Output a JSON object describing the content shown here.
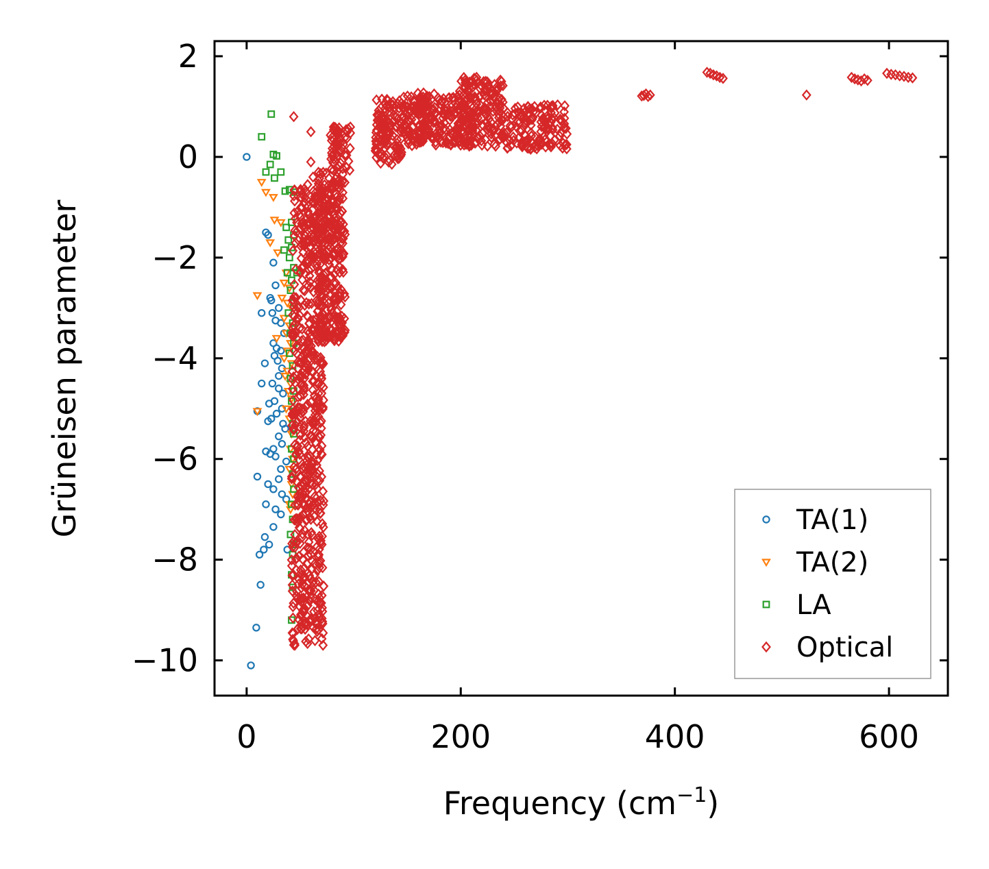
{
  "chart_data": {
    "type": "scatter",
    "title": "",
    "xlabel": "Frequency (cm",
    "xlabel_sup": "−1",
    "xlabel_close": ")",
    "ylabel": "Grüneisen parameter",
    "xlim": [
      -30,
      655
    ],
    "ylim": [
      -10.7,
      2.3
    ],
    "x_ticks": [
      0,
      200,
      400,
      600
    ],
    "x_tick_labels": [
      "0",
      "200",
      "400",
      "600"
    ],
    "y_ticks": [
      2,
      0,
      -2,
      -4,
      -6,
      -8,
      -10
    ],
    "y_tick_labels": [
      "2",
      "0",
      "−2",
      "−4",
      "−6",
      "−8",
      "−10"
    ],
    "legend_position": "lower-right",
    "series": [
      {
        "name": "TA(1)",
        "marker": "circle",
        "color": "#1f77b4",
        "points": [
          [
            0,
            0
          ],
          [
            18,
            -1.5
          ],
          [
            20,
            -1.55
          ],
          [
            25,
            -2.1
          ],
          [
            27,
            -2.55
          ],
          [
            22,
            -2.8
          ],
          [
            23,
            -2.85
          ],
          [
            30,
            -3.0
          ],
          [
            14,
            -3.1
          ],
          [
            24,
            -3.1
          ],
          [
            27,
            -3.25
          ],
          [
            32,
            -3.3
          ],
          [
            35,
            -3.5
          ],
          [
            25,
            -3.7
          ],
          [
            28,
            -3.8
          ],
          [
            32,
            -3.85
          ],
          [
            26,
            -3.95
          ],
          [
            29,
            -4.05
          ],
          [
            17,
            -4.1
          ],
          [
            33,
            -4.2
          ],
          [
            30,
            -4.35
          ],
          [
            24,
            -4.5
          ],
          [
            14,
            -4.5
          ],
          [
            30,
            -4.6
          ],
          [
            34,
            -4.7
          ],
          [
            26,
            -4.85
          ],
          [
            21,
            -4.9
          ],
          [
            33,
            -5.0
          ],
          [
            10,
            -5.05
          ],
          [
            28,
            -5.1
          ],
          [
            23,
            -5.2
          ],
          [
            20,
            -5.25
          ],
          [
            34,
            -5.3
          ],
          [
            36,
            -5.4
          ],
          [
            30,
            -5.55
          ],
          [
            33,
            -5.7
          ],
          [
            25,
            -5.8
          ],
          [
            18,
            -5.85
          ],
          [
            22,
            -5.9
          ],
          [
            27,
            -5.95
          ],
          [
            37,
            -6.05
          ],
          [
            32,
            -6.2
          ],
          [
            10,
            -6.35
          ],
          [
            30,
            -6.4
          ],
          [
            20,
            -6.5
          ],
          [
            25,
            -6.6
          ],
          [
            33,
            -6.7
          ],
          [
            37,
            -6.8
          ],
          [
            18,
            -6.9
          ],
          [
            27,
            -7.0
          ],
          [
            32,
            -7.1
          ],
          [
            25,
            -7.35
          ],
          [
            17,
            -7.55
          ],
          [
            21,
            -7.7
          ],
          [
            16,
            -7.8
          ],
          [
            38,
            -7.8
          ],
          [
            12,
            -7.9
          ],
          [
            13,
            -8.5
          ],
          [
            9,
            -9.35
          ],
          [
            4,
            -10.1
          ]
        ]
      },
      {
        "name": "TA(2)",
        "marker": "triangle-down",
        "color": "#ff7f0e",
        "points": [
          [
            14,
            -0.5
          ],
          [
            18,
            -0.7
          ],
          [
            25,
            -0.8
          ],
          [
            26,
            -1.25
          ],
          [
            32,
            -1.3
          ],
          [
            22,
            -1.7
          ],
          [
            29,
            -1.9
          ],
          [
            37,
            -2.3
          ],
          [
            35,
            -2.5
          ],
          [
            40,
            -2.6
          ],
          [
            10,
            -2.75
          ],
          [
            33,
            -2.8
          ],
          [
            38,
            -2.9
          ],
          [
            42,
            -3.0
          ],
          [
            35,
            -3.2
          ],
          [
            40,
            -3.35
          ],
          [
            37,
            -3.5
          ],
          [
            28,
            -3.6
          ],
          [
            41,
            -3.7
          ],
          [
            38,
            -3.85
          ],
          [
            35,
            -4.0
          ],
          [
            42,
            -4.1
          ],
          [
            38,
            -4.25
          ],
          [
            36,
            -4.35
          ],
          [
            41,
            -4.5
          ],
          [
            39,
            -4.65
          ],
          [
            42,
            -4.8
          ],
          [
            37,
            -5.0
          ],
          [
            10,
            -5.05
          ],
          [
            40,
            -5.2
          ],
          [
            42,
            -5.5
          ],
          [
            41,
            -5.8
          ],
          [
            43,
            -6.0
          ],
          [
            40,
            -6.2
          ],
          [
            42,
            -6.5
          ],
          [
            43,
            -6.7
          ],
          [
            40,
            -6.9
          ],
          [
            41,
            -7.0
          ]
        ]
      },
      {
        "name": "LA",
        "marker": "square",
        "color": "#2ca02c",
        "points": [
          [
            23,
            0.85
          ],
          [
            14,
            0.4
          ],
          [
            25,
            0.05
          ],
          [
            28,
            0.02
          ],
          [
            22,
            -0.15
          ],
          [
            32,
            -0.3
          ],
          [
            18,
            -0.3
          ],
          [
            26,
            -0.42
          ],
          [
            36,
            -0.68
          ],
          [
            40,
            -0.65
          ],
          [
            44,
            -0.7
          ],
          [
            42,
            -1.3
          ],
          [
            37,
            -1.4
          ],
          [
            44,
            -1.55
          ],
          [
            39,
            -1.65
          ],
          [
            42,
            -1.8
          ],
          [
            35,
            -1.85
          ],
          [
            40,
            -2.0
          ],
          [
            44,
            -2.2
          ],
          [
            38,
            -2.3
          ],
          [
            42,
            -2.45
          ],
          [
            47,
            -2.3
          ],
          [
            41,
            -2.65
          ],
          [
            44,
            -2.9
          ],
          [
            39,
            -3.1
          ],
          [
            43,
            -3.3
          ],
          [
            41,
            -3.5
          ],
          [
            44,
            -3.7
          ],
          [
            40,
            -3.9
          ],
          [
            43,
            -4.15
          ],
          [
            41,
            -4.4
          ],
          [
            44,
            -4.65
          ],
          [
            42,
            -4.85
          ],
          [
            44,
            -5.05
          ],
          [
            43,
            -5.3
          ],
          [
            44,
            -5.5
          ],
          [
            42,
            -5.8
          ],
          [
            44,
            -6.0
          ],
          [
            43,
            -6.3
          ],
          [
            44,
            -6.6
          ],
          [
            42,
            -6.9
          ],
          [
            43,
            -7.2
          ],
          [
            41,
            -7.5
          ],
          [
            44,
            -7.7
          ],
          [
            43,
            -7.9
          ],
          [
            42,
            -8.3
          ],
          [
            43,
            -8.55
          ],
          [
            42,
            -9.2
          ]
        ]
      },
      {
        "name": "Optical",
        "marker": "diamond",
        "color": "#d62728",
        "clouds": [
          {
            "x0": 42,
            "x1": 72,
            "y0": -9.7,
            "y1": -0.6,
            "n": 620,
            "seed": 11
          },
          {
            "x0": 66,
            "x1": 92,
            "y0": -3.7,
            "y1": -0.3,
            "n": 300,
            "seed": 23
          },
          {
            "x0": 78,
            "x1": 98,
            "y0": -0.3,
            "y1": 0.6,
            "n": 60,
            "seed": 37
          },
          {
            "x0": 120,
            "x1": 145,
            "y0": -0.15,
            "y1": 1.15,
            "n": 120,
            "seed": 41
          },
          {
            "x0": 145,
            "x1": 210,
            "y0": 0.2,
            "y1": 1.25,
            "n": 220,
            "seed": 53
          },
          {
            "x0": 160,
            "x1": 170,
            "y0": 0.3,
            "y1": 1.3,
            "n": 40,
            "seed": 59
          },
          {
            "x0": 195,
            "x1": 240,
            "y0": 0.2,
            "y1": 1.6,
            "n": 170,
            "seed": 61
          },
          {
            "x0": 240,
            "x1": 300,
            "y0": 0.15,
            "y1": 1.05,
            "n": 150,
            "seed": 71
          }
        ],
        "points": [
          [
            44,
            0.8
          ],
          [
            60,
            0.5
          ],
          [
            60,
            -0.1
          ],
          [
            62,
            -0.4
          ],
          [
            57,
            -0.55
          ],
          [
            54,
            -0.9
          ],
          [
            60,
            -8.75
          ],
          [
            60,
            -7.9
          ],
          [
            60,
            -7.8
          ],
          [
            60,
            -7.2
          ],
          [
            45,
            -9.7
          ],
          [
            82,
            -3.65
          ],
          [
            371,
            1.22
          ],
          [
            373,
            1.25
          ],
          [
            375,
            1.2
          ],
          [
            377,
            1.23
          ],
          [
            369,
            1.21
          ],
          [
            430,
            1.68
          ],
          [
            433,
            1.66
          ],
          [
            436,
            1.63
          ],
          [
            439,
            1.61
          ],
          [
            442,
            1.58
          ],
          [
            445,
            1.56
          ],
          [
            523,
            1.23
          ],
          [
            565,
            1.58
          ],
          [
            568,
            1.55
          ],
          [
            571,
            1.53
          ],
          [
            574,
            1.51
          ],
          [
            577,
            1.55
          ],
          [
            580,
            1.52
          ],
          [
            598,
            1.66
          ],
          [
            602,
            1.64
          ],
          [
            606,
            1.63
          ],
          [
            610,
            1.61
          ],
          [
            614,
            1.6
          ],
          [
            618,
            1.58
          ],
          [
            622,
            1.57
          ]
        ]
      }
    ]
  }
}
